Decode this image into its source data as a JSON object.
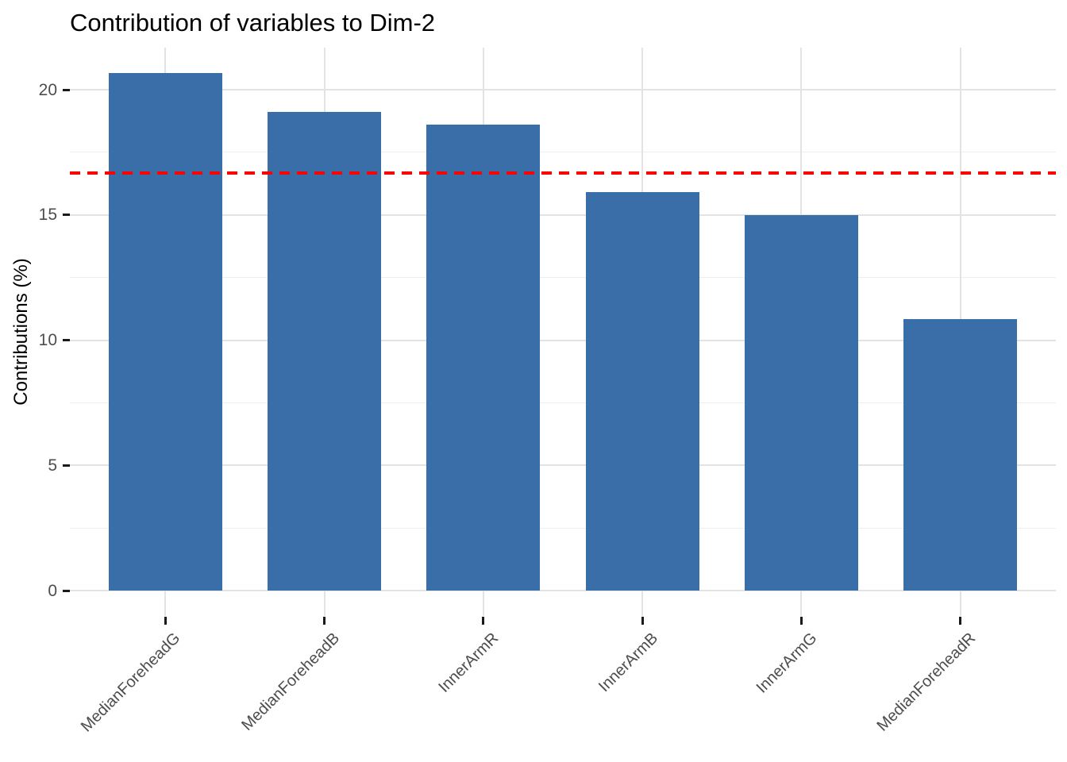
{
  "title": "Contribution of variables to Dim-2",
  "y_axis_title": "Contributions (%)",
  "chart_data": {
    "type": "bar",
    "title": "Contribution of variables to Dim-2",
    "xlabel": "",
    "ylabel": "Contributions (%)",
    "categories": [
      "MedianForeheadG",
      "MedianForeheadB",
      "InnerArmR",
      "InnerArmB",
      "InnerArmG",
      "MedianForeheadR"
    ],
    "values": [
      20.65,
      19.1,
      18.6,
      15.9,
      15.0,
      10.85
    ],
    "ylim": [
      0,
      21.7
    ],
    "yticks_major": [
      20,
      15,
      10,
      5,
      0
    ],
    "yticks_minor": [
      17.5,
      12.5,
      7.5,
      2.5
    ],
    "x_tick_angle": 45,
    "grid": "horizontal major+minor, vertical major at bar centers",
    "legend": "none",
    "reference_line": {
      "value": 16.67,
      "style": "dashed",
      "color": "#FF0000"
    }
  },
  "colors": {
    "bar": "#3A6EA8",
    "reference_line": "#FF0000",
    "grid_major": "#E3E3E3",
    "grid_minor": "#EFEFEF",
    "axis_text": "#4D4D4D",
    "tick_mark": "#1A1A1A",
    "title_text": "#000000",
    "background": "#FFFFFF"
  }
}
